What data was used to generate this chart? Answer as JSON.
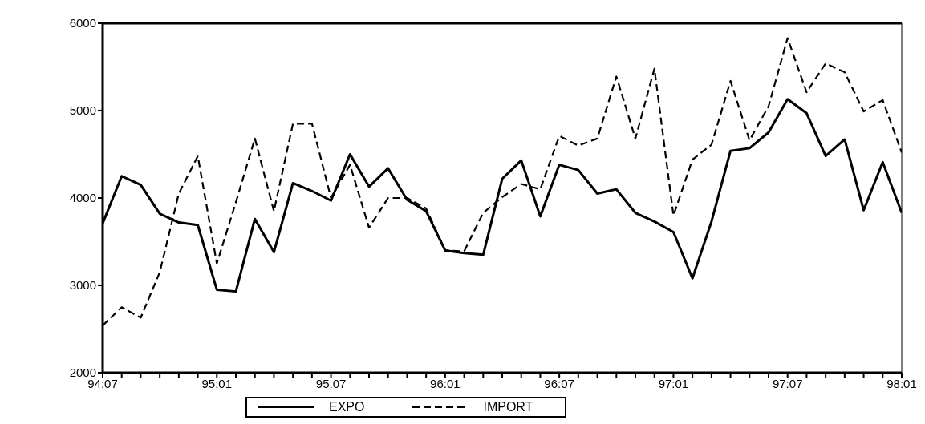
{
  "chart_data": {
    "type": "line",
    "categories": [
      "94:07",
      null,
      null,
      null,
      null,
      null,
      "95:01",
      null,
      null,
      null,
      null,
      null,
      "95:07",
      null,
      null,
      null,
      null,
      null,
      "96:01",
      null,
      null,
      null,
      null,
      null,
      "96:07",
      null,
      null,
      null,
      null,
      null,
      "97:01",
      null,
      null,
      null,
      null,
      null,
      "97:07",
      null,
      null,
      null,
      null,
      null,
      "98:01"
    ],
    "series": [
      {
        "name": "EXPO",
        "color": "#000000",
        "line_style": "solid",
        "values": [
          3710,
          4250,
          4150,
          3820,
          3720,
          3690,
          2950,
          2930,
          3760,
          3380,
          4170,
          4080,
          3970,
          4500,
          4130,
          4340,
          3980,
          3850,
          3400,
          3370,
          3350,
          4220,
          4430,
          3790,
          4380,
          4320,
          4050,
          4100,
          3830,
          3730,
          3610,
          3080,
          3730,
          4540,
          4570,
          4750,
          5130,
          4970,
          4480,
          4670,
          3860,
          4410,
          3830
        ]
      },
      {
        "name": "IMPORT",
        "color": "#000000",
        "line_style": "dashed",
        "values": [
          2540,
          2750,
          2630,
          3150,
          4050,
          4480,
          3250,
          3950,
          4680,
          3850,
          4850,
          4850,
          4000,
          4380,
          3660,
          4000,
          4000,
          3880,
          3400,
          3390,
          3830,
          4010,
          4160,
          4100,
          4710,
          4600,
          4680,
          5390,
          4680,
          5480,
          3800,
          4440,
          4610,
          5340,
          4660,
          5050,
          5830,
          5210,
          5540,
          5440,
          4990,
          5120,
          4520
        ]
      }
    ],
    "ylim": [
      2000,
      6000
    ],
    "yticks": [
      2000,
      3000,
      4000,
      5000,
      6000
    ],
    "grid": false,
    "legend": "bottom",
    "marker": "none"
  }
}
